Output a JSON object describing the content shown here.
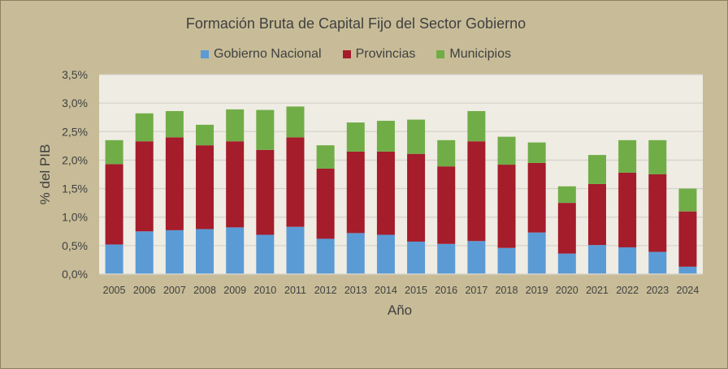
{
  "chart_data": {
    "type": "bar",
    "stacked": true,
    "title": "Formación Bruta de Capital Fijo del Sector Gobierno",
    "xlabel": "Año",
    "ylabel": "% del  PIB",
    "ylim": [
      0,
      3.5
    ],
    "yticks": [
      "0,0%",
      "0,5%",
      "1,0%",
      "1,5%",
      "2,0%",
      "2,5%",
      "3,0%",
      "3,5%"
    ],
    "grid": true,
    "legend": "top",
    "categories": [
      "2005",
      "2006",
      "2007",
      "2008",
      "2009",
      "2010",
      "2011",
      "2012",
      "2013",
      "2014",
      "2015",
      "2016",
      "2017",
      "2018",
      "2019",
      "2020",
      "2021",
      "2022",
      "2023",
      "2024"
    ],
    "series": [
      {
        "name": "Gobierno Nacional",
        "color": "#5b9bd5",
        "values": [
          0.52,
          0.75,
          0.77,
          0.79,
          0.82,
          0.69,
          0.83,
          0.62,
          0.72,
          0.69,
          0.57,
          0.53,
          0.58,
          0.46,
          0.73,
          0.36,
          0.51,
          0.47,
          0.39,
          0.13
        ]
      },
      {
        "name": "Provincias",
        "color": "#a51c2b",
        "values": [
          1.41,
          1.58,
          1.63,
          1.47,
          1.51,
          1.49,
          1.57,
          1.23,
          1.43,
          1.46,
          1.54,
          1.36,
          1.75,
          1.46,
          1.22,
          0.89,
          1.07,
          1.31,
          1.36,
          0.97
        ]
      },
      {
        "name": "Municipios",
        "color": "#70ad47",
        "values": [
          0.42,
          0.49,
          0.46,
          0.36,
          0.56,
          0.7,
          0.54,
          0.41,
          0.51,
          0.54,
          0.6,
          0.46,
          0.53,
          0.49,
          0.36,
          0.29,
          0.51,
          0.57,
          0.6,
          0.4
        ]
      }
    ]
  }
}
